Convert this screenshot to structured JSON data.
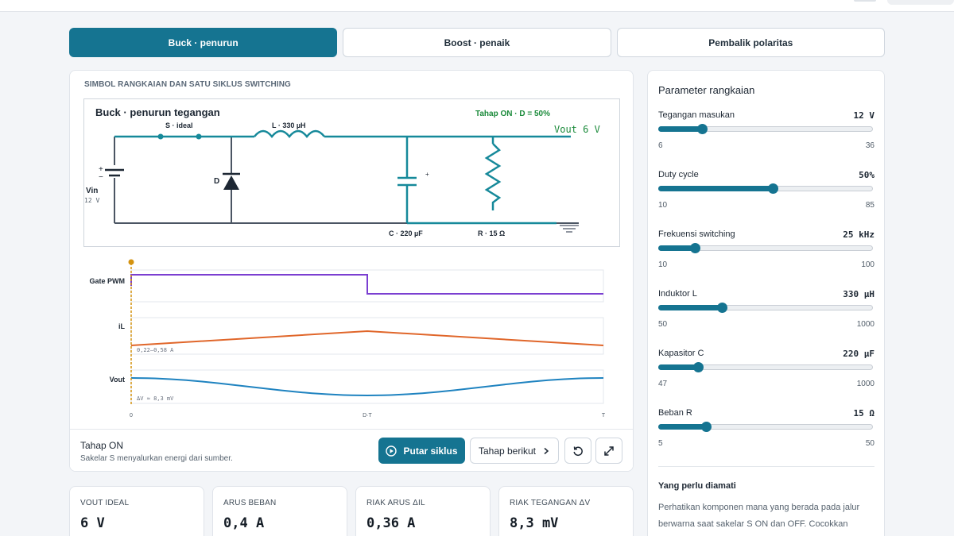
{
  "tabs": [
    {
      "label": "Buck · penurun",
      "active": true
    },
    {
      "label": "Boost · penaik",
      "active": false
    },
    {
      "label": "Pembalik polaritas",
      "active": false
    }
  ],
  "sim": {
    "heading": "SIMBOL RANGKAIAN DAN SATU SIKLUS SWITCHING",
    "circuit": {
      "title": "Buck · penurun tegangan",
      "stage_info": "Tahap ON · D = 50%",
      "switch_label": "S · ideal",
      "inductor_label": "L · 330 µH",
      "vout_label": "Vout  6 V",
      "vin_label": "Vin",
      "vin_value": "12 V",
      "diode_label": "D",
      "cap_label": "C · 220 µF",
      "res_label": "R · 15 Ω",
      "plus_sign": "+",
      "minus_sign": "−"
    },
    "waves": {
      "gate_label": "Gate PWM",
      "il_label": "iL",
      "il_range": "0,22–0,58 A",
      "vout_label": "Vout",
      "vout_ripple": "ΔV ≈ 8,3 mV",
      "x_ticks": [
        "0",
        "D·T",
        "T"
      ],
      "duty_fraction": 0.5,
      "cursor_fraction": 0
    },
    "stage_title": "Tahap ON",
    "stage_desc": "Sakelar S menyalurkan energi dari sumber.",
    "play_label": "Putar siklus",
    "next_label": "Tahap berikut"
  },
  "stats": [
    {
      "label": "VOUT IDEAL",
      "value": "6 V"
    },
    {
      "label": "ARUS BEBAN",
      "value": "0,4 A"
    },
    {
      "label": "RIAK ARUS ΔIL",
      "value": "0,36 A"
    },
    {
      "label": "RIAK TEGANGAN ΔV",
      "value": "8,3 mV"
    }
  ],
  "params": {
    "title": "Parameter rangkaian",
    "items": [
      {
        "label": "Tegangan masukan",
        "value": "12  V",
        "min": "6",
        "max": "36",
        "fraction": 0.2
      },
      {
        "label": "Duty cycle",
        "value": "50%",
        "min": "10",
        "max": "85",
        "fraction": 0.533
      },
      {
        "label": "Frekuensi switching",
        "value": "25  kHz",
        "min": "10",
        "max": "100",
        "fraction": 0.167
      },
      {
        "label": "Induktor L",
        "value": "330  µH",
        "min": "50",
        "max": "1000",
        "fraction": 0.295
      },
      {
        "label": "Kapasitor C",
        "value": "220  µF",
        "min": "47",
        "max": "1000",
        "fraction": 0.182
      },
      {
        "label": "Beban R",
        "value": "15  Ω",
        "min": "5",
        "max": "50",
        "fraction": 0.222
      }
    ],
    "note_title": "Yang perlu diamati",
    "note_text": "Perhatikan komponen mana yang berada pada jalur berwarna saat sakelar S ON dan OFF. Cocokkan perubahan itu dengan kemiringan arus induktor."
  },
  "colors": {
    "accent": "#157491",
    "circuit_active": "#16899a",
    "circuit_idle": "#4b5563",
    "gate": "#7b3fd1",
    "il": "#e0662a",
    "vout": "#1f83c0",
    "cursor": "#d4920f",
    "vout_text": "#1a8a3a"
  }
}
